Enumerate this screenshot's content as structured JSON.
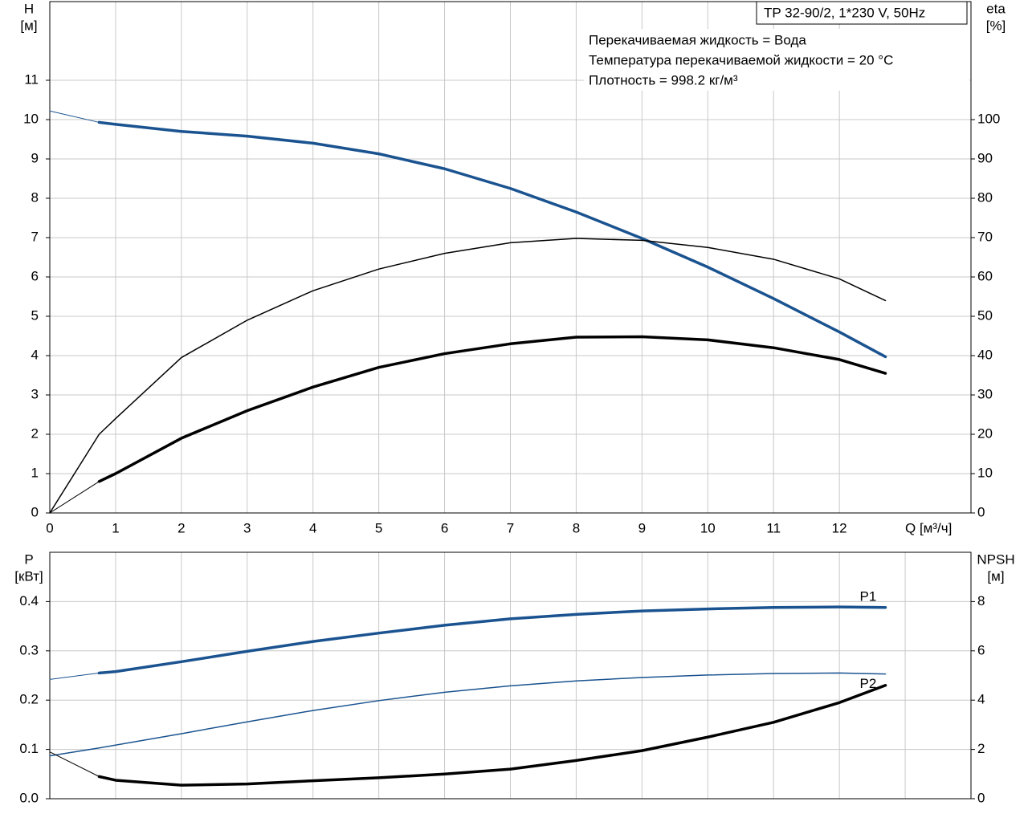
{
  "chart_data": [
    {
      "type": "line",
      "title": "TP 32-90/2, 1*230 V, 50Hz",
      "annotations": [
        "Перекачиваемая жидкость = Вода",
        "Температура перекачиваемой жидкости = 20 °C",
        "Плотность = 998.2 кг/м³"
      ],
      "ylabel": "H",
      "yunit": "[м]",
      "y2label": "eta",
      "y2unit": "[%]",
      "xlabel": "Q [м³/ч]",
      "xlim": [
        0,
        14
      ],
      "xticks": [
        0,
        1,
        2,
        3,
        4,
        5,
        6,
        7,
        8,
        9,
        10,
        11,
        12
      ],
      "xtick_labels": true,
      "ylim": [
        0,
        13
      ],
      "yticks": [
        0,
        1,
        2,
        3,
        4,
        5,
        6,
        7,
        8,
        9,
        10,
        11
      ],
      "y2lim": [
        0,
        130
      ],
      "y2ticks": [
        0,
        10,
        20,
        30,
        40,
        50,
        60,
        70,
        80,
        90,
        100
      ],
      "grid": true,
      "series": [
        {
          "color": "#1a5390",
          "width": 1,
          "axis": "y",
          "x": [
            0,
            0.75
          ],
          "values": [
            10.22,
            9.93
          ]
        },
        {
          "color": "#1a5390",
          "width": 3.5,
          "axis": "y",
          "x": [
            0.75,
            1,
            2,
            3,
            4,
            5,
            6,
            7,
            8,
            9,
            10,
            11,
            12,
            12.7
          ],
          "values": [
            9.93,
            9.88,
            9.7,
            9.58,
            9.4,
            9.13,
            8.75,
            8.25,
            7.65,
            6.98,
            6.25,
            5.45,
            4.6,
            3.97
          ]
        },
        {
          "color": "#000000",
          "width": 1.5,
          "axis": "y2",
          "x": [
            0,
            0.75,
            1,
            2,
            3,
            4,
            5,
            6,
            7,
            8,
            9,
            10,
            11,
            12,
            12.7
          ],
          "values": [
            0,
            20,
            24,
            39.5,
            49,
            56.5,
            62,
            66,
            68.7,
            69.8,
            69.3,
            67.5,
            64.5,
            59.5,
            54
          ]
        },
        {
          "color": "#000000",
          "width": 1,
          "axis": "y2",
          "x": [
            0,
            0.75
          ],
          "values": [
            0,
            8
          ]
        },
        {
          "color": "#000000",
          "width": 3.5,
          "axis": "y2",
          "x": [
            0.75,
            1,
            2,
            3,
            4,
            5,
            6,
            7,
            8,
            9,
            10,
            11,
            12,
            12.7
          ],
          "values": [
            8,
            10,
            19,
            26,
            32,
            37,
            40.5,
            43,
            44.7,
            44.8,
            44,
            42,
            39,
            35.5
          ]
        }
      ]
    },
    {
      "type": "line",
      "ylabel": "P",
      "yunit": "[кВт]",
      "y2label": "NPSH",
      "y2unit": "[м]",
      "xlim": [
        0,
        14
      ],
      "xticks": [
        0,
        1,
        2,
        3,
        4,
        5,
        6,
        7,
        8,
        9,
        10,
        11,
        12,
        13
      ],
      "xtick_labels": false,
      "ylim": [
        0,
        0.5
      ],
      "yticks": [
        {
          "value": 0,
          "label": "0.0"
        },
        0.1,
        0.2,
        0.3,
        0.4
      ],
      "y2lim": [
        0,
        10
      ],
      "y2ticks": [
        0,
        2,
        4,
        6,
        8
      ],
      "grid": true,
      "series": [
        {
          "color": "#1a5390",
          "width": 1,
          "axis": "y",
          "x": [
            0,
            0.75
          ],
          "values": [
            0.242,
            0.255
          ]
        },
        {
          "name": "P1",
          "label_side": "above",
          "color": "#1a5390",
          "width": 3.5,
          "axis": "y",
          "x": [
            0.75,
            1,
            2,
            3,
            4,
            5,
            6,
            7,
            8,
            9,
            10,
            11,
            12,
            12.7
          ],
          "values": [
            0.255,
            0.258,
            0.278,
            0.299,
            0.319,
            0.336,
            0.352,
            0.365,
            0.374,
            0.381,
            0.385,
            0.388,
            0.389,
            0.388
          ]
        },
        {
          "name": "P2",
          "label_side": "below",
          "color": "#1a5390",
          "width": 1.5,
          "axis": "y",
          "x": [
            0,
            0.75,
            2,
            3,
            4,
            5,
            6,
            7,
            8,
            9,
            10,
            11,
            12,
            12.7
          ],
          "values": [
            0.087,
            0.103,
            0.132,
            0.156,
            0.179,
            0.199,
            0.216,
            0.229,
            0.239,
            0.246,
            0.251,
            0.254,
            0.255,
            0.253
          ]
        },
        {
          "color": "#000000",
          "width": 1,
          "axis": "y2",
          "x": [
            0,
            0.75
          ],
          "values": [
            1.9,
            0.9
          ]
        },
        {
          "color": "#000000",
          "width": 3.5,
          "axis": "y2",
          "x": [
            0.75,
            1,
            2,
            3,
            4,
            5,
            6,
            7,
            8,
            9,
            10,
            11,
            12,
            12.7
          ],
          "values": [
            0.9,
            0.75,
            0.55,
            0.6,
            0.73,
            0.85,
            1.0,
            1.2,
            1.55,
            1.95,
            2.5,
            3.1,
            3.9,
            4.6
          ]
        }
      ]
    }
  ]
}
